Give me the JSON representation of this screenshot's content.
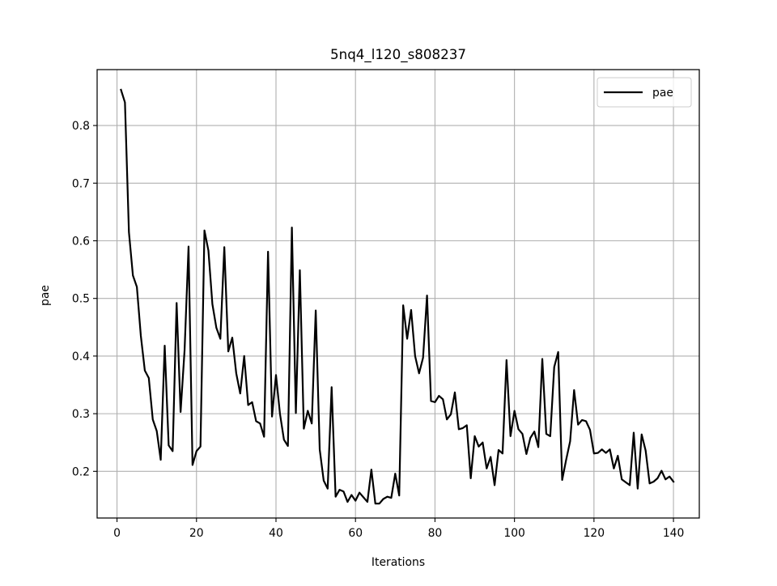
{
  "chart_data": {
    "type": "line",
    "title": "5nq4_l120_s808237",
    "xlabel": "Iterations",
    "ylabel": "pae",
    "xlim": [
      -5,
      146.5
    ],
    "ylim": [
      0.119,
      0.897
    ],
    "x_ticks": [
      0,
      20,
      40,
      60,
      80,
      100,
      120,
      140
    ],
    "y_ticks": [
      0.2,
      0.3,
      0.4,
      0.5,
      0.6,
      0.7,
      0.8
    ],
    "grid": true,
    "legend_position": "top-right",
    "series": [
      {
        "name": "pae",
        "color": "#000000",
        "x": [
          1,
          2,
          3,
          4,
          5,
          6,
          7,
          8,
          9,
          10,
          11,
          12,
          13,
          14,
          15,
          16,
          17,
          18,
          19,
          20,
          21,
          22,
          23,
          24,
          25,
          26,
          27,
          28,
          29,
          30,
          31,
          32,
          33,
          34,
          35,
          36,
          37,
          38,
          39,
          40,
          41,
          42,
          43,
          44,
          45,
          46,
          47,
          48,
          49,
          50,
          51,
          52,
          53,
          54,
          55,
          56,
          57,
          58,
          59,
          60,
          61,
          62,
          63,
          64,
          65,
          66,
          67,
          68,
          69,
          70,
          71,
          72,
          73,
          74,
          75,
          76,
          77,
          78,
          79,
          80,
          81,
          82,
          83,
          84,
          85,
          86,
          87,
          88,
          89,
          90,
          91,
          92,
          93,
          94,
          95,
          96,
          97,
          98,
          99,
          100,
          101,
          102,
          103,
          104,
          105,
          106,
          107,
          108,
          109,
          110,
          111,
          112,
          113,
          114,
          115,
          116,
          117,
          118,
          119,
          120,
          121,
          122,
          123,
          124,
          125,
          126,
          127,
          128,
          129,
          130,
          131,
          132,
          133,
          134,
          135,
          136,
          137,
          138,
          139,
          140
        ],
        "values": [
          0.862,
          0.84,
          0.615,
          0.54,
          0.52,
          0.435,
          0.375,
          0.362,
          0.29,
          0.27,
          0.22,
          0.418,
          0.245,
          0.235,
          0.492,
          0.303,
          0.41,
          0.59,
          0.211,
          0.235,
          0.243,
          0.618,
          0.583,
          0.49,
          0.449,
          0.43,
          0.589,
          0.408,
          0.432,
          0.37,
          0.335,
          0.4,
          0.315,
          0.32,
          0.287,
          0.283,
          0.26,
          0.581,
          0.295,
          0.367,
          0.3,
          0.255,
          0.244,
          0.623,
          0.301,
          0.549,
          0.274,
          0.305,
          0.283,
          0.479,
          0.238,
          0.184,
          0.17,
          0.346,
          0.156,
          0.168,
          0.165,
          0.147,
          0.159,
          0.149,
          0.163,
          0.155,
          0.147,
          0.203,
          0.144,
          0.144,
          0.152,
          0.156,
          0.154,
          0.196,
          0.158,
          0.488,
          0.43,
          0.48,
          0.4,
          0.37,
          0.397,
          0.505,
          0.322,
          0.32,
          0.331,
          0.325,
          0.29,
          0.299,
          0.337,
          0.273,
          0.275,
          0.28,
          0.188,
          0.261,
          0.243,
          0.25,
          0.205,
          0.225,
          0.176,
          0.237,
          0.231,
          0.393,
          0.261,
          0.305,
          0.273,
          0.265,
          0.23,
          0.258,
          0.269,
          0.242,
          0.395,
          0.265,
          0.261,
          0.381,
          0.407,
          0.185,
          0.22,
          0.252,
          0.341,
          0.281,
          0.289,
          0.287,
          0.272,
          0.231,
          0.232,
          0.238,
          0.232,
          0.238,
          0.205,
          0.227,
          0.186,
          0.181,
          0.176,
          0.267,
          0.17,
          0.264,
          0.236,
          0.179,
          0.182,
          0.188,
          0.201,
          0.186,
          0.191,
          0.182
        ]
      }
    ]
  }
}
